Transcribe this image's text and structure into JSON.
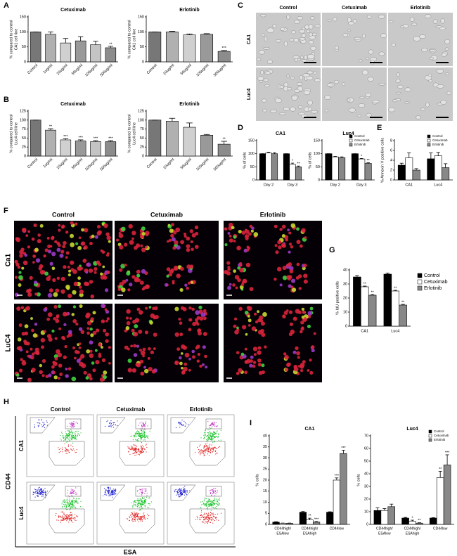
{
  "panel_letters": [
    "A",
    "B",
    "C",
    "D",
    "E",
    "F",
    "G",
    "H",
    "I"
  ],
  "chart_data": [
    {
      "type": "bar",
      "title": "Cetuximab",
      "y_label": [
        "% compared to control",
        "CA1 cell line"
      ],
      "categories": [
        "Control",
        "1ug/ml",
        "10ug/ml",
        "50ug/ml",
        "100ug/ml",
        "500ug/ml"
      ],
      "values": [
        100,
        92,
        63,
        70,
        57,
        47
      ],
      "errors": [
        0,
        8,
        15,
        14,
        12,
        5
      ],
      "annotations": [
        null,
        null,
        null,
        null,
        null,
        "**"
      ],
      "colors": [
        "#777777",
        "#b0b0b0",
        "#d0d0d0",
        "#999999",
        "#c4c4c4",
        "#8c8c8c"
      ],
      "ylim": [
        0,
        150
      ],
      "yticks": [
        0,
        50,
        100,
        150
      ]
    },
    {
      "type": "bar",
      "title": "Erlotinib",
      "y_label": [
        "% compared to control",
        "CA1 cell line"
      ],
      "categories": [
        "Control",
        "10ug/ml",
        "50ug/ml",
        "100ug/ml",
        "500ug/ml"
      ],
      "values": [
        100,
        100,
        90,
        92,
        35
      ],
      "errors": [
        0,
        2,
        3,
        2,
        3
      ],
      "annotations": [
        null,
        null,
        null,
        null,
        "***"
      ],
      "colors": [
        "#777777",
        "#b0b0b0",
        "#d0d0d0",
        "#999999",
        "#8c8c8c"
      ],
      "ylim": [
        0,
        150
      ],
      "yticks": [
        0,
        50,
        100,
        150
      ]
    },
    {
      "type": "bar",
      "title": "Cetuximab",
      "y_label": [
        "% compared to control",
        "Luc4 cell line"
      ],
      "categories": [
        "Control",
        "1ug/ml",
        "10ug/ml",
        "50ug/ml",
        "100ug/ml",
        "500ug/ml"
      ],
      "values": [
        100,
        72,
        45,
        42,
        40,
        40
      ],
      "errors": [
        0,
        4,
        3,
        3,
        3,
        3
      ],
      "annotations": [
        null,
        "**",
        "***",
        "***",
        "***",
        "***"
      ],
      "colors": [
        "#777777",
        "#b0b0b0",
        "#d0d0d0",
        "#999999",
        "#c4c4c4",
        "#8c8c8c"
      ],
      "ylim": [
        0,
        125
      ],
      "yticks": [
        0,
        25,
        50,
        75,
        100,
        125
      ]
    },
    {
      "type": "bar",
      "title": "Erlotinib",
      "y_label": [
        "% compared to control",
        "Luc4 cell line"
      ],
      "categories": [
        "Control",
        "10ug/ml",
        "50ug/ml",
        "100ug/ml",
        "500ug/ml"
      ],
      "values": [
        100,
        97,
        80,
        58,
        33
      ],
      "errors": [
        0,
        8,
        12,
        2,
        8
      ],
      "annotations": [
        null,
        null,
        null,
        null,
        "**"
      ],
      "colors": [
        "#777777",
        "#b0b0b0",
        "#d0d0d0",
        "#999999",
        "#8c8c8c"
      ],
      "ylim": [
        0,
        125
      ],
      "yticks": [
        0,
        25,
        50,
        75,
        100,
        125
      ]
    },
    {
      "type": "bar",
      "title": "CA1",
      "y_label": [
        "% of cells"
      ],
      "categories": [
        "Day 2",
        "Day 3"
      ],
      "series": [
        {
          "name": "Control",
          "color": "#000000",
          "values": [
            100,
            100
          ],
          "errors": [
            0,
            0
          ],
          "annotations": [
            null,
            null
          ]
        },
        {
          "name": "Cetuximab",
          "color": "#ffffff",
          "values": [
            103,
            60
          ],
          "errors": [
            3,
            4
          ],
          "annotations": [
            null,
            "*"
          ]
        },
        {
          "name": "Erlotinib",
          "color": "#888888",
          "values": [
            100,
            50
          ],
          "errors": [
            4,
            3
          ],
          "annotations": [
            null,
            "**"
          ]
        }
      ],
      "ylim": [
        0,
        150
      ],
      "yticks": [
        0,
        50,
        100,
        150
      ]
    },
    {
      "type": "bar",
      "title": "Luc4",
      "y_label": [
        "% of cells"
      ],
      "categories": [
        "Day 2",
        "Day 3"
      ],
      "series": [
        {
          "name": "Control",
          "color": "#000000",
          "values": [
            100,
            100
          ],
          "errors": [
            0,
            0
          ],
          "annotations": [
            null,
            null
          ]
        },
        {
          "name": "Cetuximab",
          "color": "#ffffff",
          "values": [
            88,
            80
          ],
          "errors": [
            2,
            2
          ],
          "annotations": [
            null,
            "*"
          ]
        },
        {
          "name": "Erlotinib",
          "color": "#888888",
          "values": [
            85,
            63
          ],
          "errors": [
            3,
            3
          ],
          "annotations": [
            null,
            "**"
          ]
        }
      ],
      "ylim": [
        0,
        150
      ],
      "yticks": [
        0,
        50,
        100,
        150
      ],
      "legend": "upper right"
    },
    {
      "type": "bar",
      "y_label": [
        "% Annexin V positive cells"
      ],
      "categories": [
        "CA1",
        "Luc4"
      ],
      "series": [
        {
          "name": "Control",
          "color": "#000000",
          "values": [
            3,
            4.3
          ],
          "errors": [
            0.4,
            1.2
          ],
          "annotations": [
            null,
            null
          ]
        },
        {
          "name": "Cetuximab",
          "color": "#ffffff",
          "values": [
            4.5,
            4.9
          ],
          "errors": [
            1,
            0.7
          ],
          "annotations": [
            null,
            null
          ]
        },
        {
          "name": "Erlotinib",
          "color": "#888888",
          "values": [
            2,
            2.5
          ],
          "errors": [
            0.3,
            0.8
          ],
          "annotations": [
            null,
            null
          ]
        }
      ],
      "ylim": [
        0,
        8
      ],
      "yticks": [
        0,
        2,
        4,
        6,
        8
      ],
      "legend": "upper right"
    },
    {
      "type": "bar",
      "y_label": [
        "% IdU positive cells"
      ],
      "categories": [
        "CA1",
        "Luc4"
      ],
      "series": [
        {
          "name": "Control",
          "color": "#000000",
          "values": [
            35,
            37
          ],
          "errors": [
            1,
            0.8
          ],
          "annotations": [
            null,
            null
          ]
        },
        {
          "name": "Cetuximab",
          "color": "#ffffff",
          "values": [
            28,
            25
          ],
          "errors": [
            0.5,
            0.5
          ],
          "annotations": [
            "**",
            "**"
          ]
        },
        {
          "name": "Erlotinib",
          "color": "#888888",
          "values": [
            22,
            15
          ],
          "errors": [
            0.5,
            0.5
          ],
          "annotations": [
            "**",
            "**"
          ]
        }
      ],
      "ylim": [
        0,
        40
      ],
      "yticks": [
        0,
        10,
        20,
        30,
        40
      ],
      "legend": "right"
    },
    {
      "type": "bar",
      "title": "CA1",
      "y_label": [
        "% cells"
      ],
      "categories": [
        [
          "CD44high/",
          "ESAlow"
        ],
        [
          "CD44high/",
          "ESAhigh"
        ],
        [
          "CD44low"
        ]
      ],
      "series": [
        {
          "name": "Control",
          "color": "#000000",
          "values": [
            1,
            5.5,
            5.5
          ],
          "errors": [
            0.2,
            0.3,
            0.2
          ],
          "annotations": [
            null,
            null,
            null
          ]
        },
        {
          "name": "Cetuximab",
          "color": "#ffffff",
          "values": [
            0.5,
            2,
            20
          ],
          "errors": [
            0.1,
            0.8,
            1
          ],
          "annotations": [
            null,
            "**",
            "***"
          ]
        },
        {
          "name": "Erlotinib",
          "color": "#888888",
          "values": [
            0.5,
            1,
            32
          ],
          "errors": [
            0.1,
            0.3,
            1.5
          ],
          "annotations": [
            null,
            "***",
            "***"
          ]
        }
      ],
      "ylim": [
        0,
        40
      ],
      "yticks": [
        0,
        5,
        10,
        15,
        20,
        25,
        30,
        35,
        40
      ]
    },
    {
      "type": "bar",
      "title": "Luc4",
      "y_label": [
        "% cells"
      ],
      "categories": [
        [
          "CD44high/",
          "ESAlow"
        ],
        [
          "CD44high/",
          "ESAhigh"
        ],
        [
          "CD44low"
        ]
      ],
      "series": [
        {
          "name": "Control",
          "color": "#000000",
          "values": [
            11,
            5,
            5
          ],
          "errors": [
            2,
            0.5,
            0.3
          ],
          "annotations": [
            null,
            null,
            null
          ]
        },
        {
          "name": "Cetuximab",
          "color": "#ffffff",
          "values": [
            11,
            2.5,
            37
          ],
          "errors": [
            1.5,
            0.8,
            5
          ],
          "annotations": [
            null,
            "*",
            "**"
          ]
        },
        {
          "name": "Erlotinib",
          "color": "#888888",
          "values": [
            14,
            1,
            47
          ],
          "errors": [
            2,
            0.3,
            8
          ],
          "annotations": [
            null,
            "**",
            "***"
          ]
        }
      ],
      "ylim": [
        0,
        70
      ],
      "yticks": [
        0,
        10,
        20,
        30,
        40,
        50,
        60,
        70
      ],
      "legend": "upper right"
    }
  ],
  "micrographs_C": {
    "columns": [
      "Control",
      "Cetuximab",
      "Erlotinib"
    ],
    "rows": [
      "CA1",
      "Luc4"
    ]
  },
  "micrographs_F": {
    "columns": [
      "Control",
      "Cetuximab",
      "Erlotinib"
    ],
    "rows": [
      "Ca1",
      "LuC4"
    ]
  },
  "flow_H": {
    "columns": [
      "Control",
      "Cetuximab",
      "Erlotinib"
    ],
    "rows": [
      "CA1",
      "Luc4"
    ],
    "y_label": "CD44",
    "x_label": "ESA"
  }
}
